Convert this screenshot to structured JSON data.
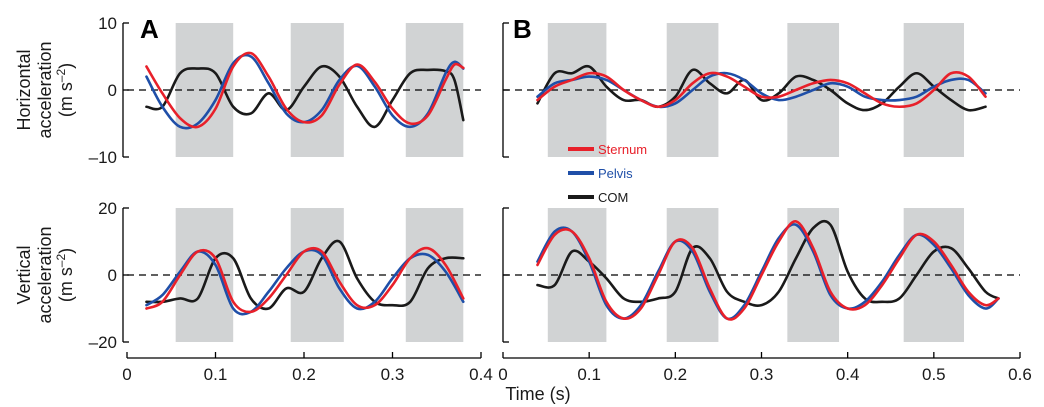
{
  "figure": {
    "xlabel": "Time (s)",
    "panel_letters": [
      "A",
      "B"
    ],
    "row_titles": [
      {
        "line1": "Horizontal",
        "line2": "acceleration",
        "unit": "(m s",
        "sup": "–2",
        "close": ")"
      },
      {
        "line1": "Vertical",
        "line2": "acceleration",
        "unit": "(m s",
        "sup": "–2",
        "close": ")"
      }
    ],
    "legend": [
      {
        "name": "Sternum",
        "color": "#e8202a"
      },
      {
        "name": "Pelvis",
        "color": "#1f4fa8"
      },
      {
        "name": "COM",
        "color": "#1a1a1a"
      }
    ],
    "colors": {
      "shade": "#d1d3d4",
      "axis": "#000000"
    }
  },
  "chart_data": [
    {
      "type": "line",
      "panel": "A",
      "row": "horizontal",
      "xlim": [
        0,
        0.4
      ],
      "ylim": [
        -10,
        10
      ],
      "xticks": [
        0,
        0.1,
        0.2,
        0.3,
        0.4
      ],
      "xtick_labels": [
        "0",
        "0.1",
        "0.2",
        "0.3",
        "0.4"
      ],
      "yticks": [
        -10,
        0,
        10
      ],
      "ytick_labels": [
        "–10",
        "0",
        "10"
      ],
      "shaded": [
        [
          0.055,
          0.12
        ],
        [
          0.185,
          0.245
        ],
        [
          0.315,
          0.38
        ]
      ],
      "series": [
        {
          "name": "Sternum",
          "x": [
            0.022,
            0.04,
            0.06,
            0.08,
            0.1,
            0.12,
            0.14,
            0.16,
            0.18,
            0.2,
            0.22,
            0.24,
            0.26,
            0.28,
            0.3,
            0.32,
            0.34,
            0.36,
            0.37,
            0.38
          ],
          "y": [
            3.5,
            -0.5,
            -4.2,
            -5.5,
            -2.8,
            3.5,
            5.5,
            2.0,
            -2.8,
            -4.8,
            -3.8,
            0.8,
            3.8,
            1.2,
            -2.8,
            -5.0,
            -3.8,
            1.5,
            3.8,
            3.3
          ]
        },
        {
          "name": "Pelvis",
          "x": [
            0.022,
            0.04,
            0.06,
            0.08,
            0.1,
            0.12,
            0.14,
            0.16,
            0.18,
            0.2,
            0.22,
            0.24,
            0.26,
            0.28,
            0.3,
            0.32,
            0.34,
            0.36,
            0.37,
            0.38
          ],
          "y": [
            2.0,
            -2.5,
            -5.5,
            -5.0,
            -1.5,
            4.0,
            5.0,
            1.0,
            -3.5,
            -4.8,
            -3.0,
            1.5,
            3.6,
            0.5,
            -3.8,
            -5.5,
            -3.5,
            2.5,
            4.2,
            3.2
          ]
        },
        {
          "name": "COM",
          "x": [
            0.022,
            0.04,
            0.06,
            0.08,
            0.1,
            0.12,
            0.14,
            0.16,
            0.18,
            0.2,
            0.22,
            0.24,
            0.26,
            0.28,
            0.3,
            0.32,
            0.34,
            0.36,
            0.37,
            0.38
          ],
          "y": [
            -2.5,
            -2.5,
            2.5,
            3.2,
            2.5,
            -2.5,
            -3.5,
            -0.5,
            -3.0,
            0.5,
            3.5,
            2.0,
            -2.5,
            -5.5,
            -1.5,
            2.5,
            3.0,
            2.8,
            1.5,
            -4.5
          ]
        }
      ]
    },
    {
      "type": "line",
      "panel": "B",
      "row": "horizontal",
      "xlim": [
        0,
        0.6
      ],
      "ylim": [
        -10,
        10
      ],
      "xticks": [
        0,
        0.1,
        0.2,
        0.3,
        0.4,
        0.5,
        0.6
      ],
      "xtick_labels": [
        "0",
        "0.1",
        "0.2",
        "0.3",
        "0.4",
        "0.5",
        "0.6"
      ],
      "yticks": [
        -10,
        0,
        10
      ],
      "ytick_labels": [
        "",
        "",
        ""
      ],
      "shaded": [
        [
          0.052,
          0.12
        ],
        [
          0.19,
          0.25
        ],
        [
          0.33,
          0.39
        ],
        [
          0.465,
          0.535
        ]
      ],
      "series": [
        {
          "name": "Sternum",
          "x": [
            0.04,
            0.06,
            0.08,
            0.1,
            0.12,
            0.14,
            0.16,
            0.18,
            0.2,
            0.22,
            0.24,
            0.26,
            0.28,
            0.3,
            0.32,
            0.34,
            0.36,
            0.38,
            0.4,
            0.42,
            0.44,
            0.46,
            0.48,
            0.5,
            0.52,
            0.54,
            0.56
          ],
          "y": [
            -1.5,
            0.5,
            1.5,
            2.5,
            2.0,
            0.0,
            -1.5,
            -2.5,
            -1.5,
            1.0,
            2.5,
            2.0,
            0.5,
            -1.0,
            -1.0,
            0.0,
            1.0,
            1.5,
            1.0,
            -0.5,
            -2.0,
            -2.5,
            -2.0,
            0.0,
            2.5,
            2.0,
            -1.0
          ]
        },
        {
          "name": "Pelvis",
          "x": [
            0.04,
            0.06,
            0.08,
            0.1,
            0.12,
            0.14,
            0.16,
            0.18,
            0.2,
            0.22,
            0.24,
            0.26,
            0.28,
            0.3,
            0.32,
            0.34,
            0.36,
            0.38,
            0.4,
            0.42,
            0.44,
            0.46,
            0.48,
            0.5,
            0.52,
            0.54,
            0.56
          ],
          "y": [
            -1.0,
            1.0,
            1.5,
            2.0,
            1.5,
            0.0,
            -1.5,
            -2.5,
            -2.0,
            0.0,
            2.0,
            2.5,
            1.5,
            -0.5,
            -1.5,
            -1.0,
            0.0,
            1.0,
            0.5,
            -1.0,
            -1.5,
            -1.5,
            -1.0,
            0.5,
            1.5,
            1.5,
            -0.5
          ]
        },
        {
          "name": "COM",
          "x": [
            0.04,
            0.06,
            0.08,
            0.1,
            0.12,
            0.14,
            0.16,
            0.18,
            0.2,
            0.22,
            0.24,
            0.26,
            0.28,
            0.3,
            0.32,
            0.34,
            0.36,
            0.38,
            0.4,
            0.42,
            0.44,
            0.46,
            0.48,
            0.5,
            0.52,
            0.54,
            0.56
          ],
          "y": [
            -2.0,
            2.5,
            2.5,
            3.5,
            0.5,
            -1.5,
            -1.5,
            -2.5,
            -1.0,
            3.0,
            1.0,
            -0.5,
            1.5,
            -1.5,
            -0.5,
            2.0,
            1.5,
            0.0,
            -2.0,
            -3.0,
            -2.0,
            0.5,
            2.5,
            0.5,
            -1.5,
            -3.0,
            -2.5
          ]
        }
      ]
    },
    {
      "type": "line",
      "panel": "A",
      "row": "vertical",
      "xlim": [
        0,
        0.4
      ],
      "ylim": [
        -20,
        20
      ],
      "xticks": [
        0,
        0.1,
        0.2,
        0.3,
        0.4
      ],
      "xtick_labels": [
        "0",
        "0.1",
        "0.2",
        "0.3",
        "0.4"
      ],
      "yticks": [
        -20,
        0,
        20
      ],
      "ytick_labels": [
        "–20",
        "0",
        "20"
      ],
      "shaded": [
        [
          0.055,
          0.12
        ],
        [
          0.185,
          0.245
        ],
        [
          0.315,
          0.38
        ]
      ],
      "series": [
        {
          "name": "Sternum",
          "x": [
            0.022,
            0.04,
            0.06,
            0.08,
            0.1,
            0.12,
            0.14,
            0.16,
            0.18,
            0.2,
            0.22,
            0.24,
            0.26,
            0.28,
            0.3,
            0.32,
            0.34,
            0.36,
            0.38
          ],
          "y": [
            -10,
            -8,
            0,
            7,
            5,
            -8,
            -11,
            -7,
            0,
            7,
            7,
            -2,
            -9,
            -9,
            -3,
            5,
            8,
            3,
            -7
          ]
        },
        {
          "name": "Pelvis",
          "x": [
            0.022,
            0.04,
            0.06,
            0.08,
            0.1,
            0.12,
            0.14,
            0.16,
            0.18,
            0.2,
            0.22,
            0.24,
            0.26,
            0.28,
            0.3,
            0.32,
            0.34,
            0.36,
            0.38
          ],
          "y": [
            -9,
            -6,
            1,
            7,
            3,
            -10,
            -11,
            -5,
            2,
            7,
            6,
            -4,
            -10,
            -8,
            -1,
            5,
            6,
            1,
            -8
          ]
        },
        {
          "name": "COM",
          "x": [
            0.022,
            0.04,
            0.06,
            0.08,
            0.1,
            0.12,
            0.14,
            0.16,
            0.18,
            0.2,
            0.22,
            0.24,
            0.26,
            0.28,
            0.3,
            0.32,
            0.34,
            0.36,
            0.38
          ],
          "y": [
            -8,
            -8,
            -7,
            -7,
            5,
            5,
            -7,
            -10,
            -4,
            -5,
            5,
            10,
            -1,
            -8,
            -9,
            -8,
            2,
            5,
            5
          ]
        }
      ]
    },
    {
      "type": "line",
      "panel": "B",
      "row": "vertical",
      "xlim": [
        0,
        0.6
      ],
      "ylim": [
        -20,
        20
      ],
      "xticks": [
        0,
        0.1,
        0.2,
        0.3,
        0.4,
        0.5,
        0.6
      ],
      "xtick_labels": [
        "0",
        "0.1",
        "0.2",
        "0.3",
        "0.4",
        "0.5",
        "0.6"
      ],
      "yticks": [
        -20,
        0,
        20
      ],
      "ytick_labels": [
        "",
        "",
        ""
      ],
      "shaded": [
        [
          0.052,
          0.12
        ],
        [
          0.19,
          0.25
        ],
        [
          0.33,
          0.39
        ],
        [
          0.465,
          0.535
        ]
      ],
      "series": [
        {
          "name": "Sternum",
          "x": [
            0.04,
            0.06,
            0.08,
            0.1,
            0.12,
            0.14,
            0.16,
            0.18,
            0.2,
            0.22,
            0.24,
            0.26,
            0.28,
            0.3,
            0.32,
            0.34,
            0.36,
            0.38,
            0.4,
            0.42,
            0.44,
            0.46,
            0.48,
            0.5,
            0.52,
            0.54,
            0.56,
            0.575
          ],
          "y": [
            3,
            12,
            13,
            5,
            -8,
            -13,
            -10,
            0,
            10,
            8,
            -4,
            -13,
            -10,
            0,
            10,
            16,
            8,
            -5,
            -10,
            -9,
            -3,
            5,
            12,
            10,
            3,
            -5,
            -9,
            -7
          ]
        },
        {
          "name": "Pelvis",
          "x": [
            0.04,
            0.06,
            0.08,
            0.1,
            0.12,
            0.14,
            0.16,
            0.18,
            0.2,
            0.22,
            0.24,
            0.26,
            0.28,
            0.3,
            0.32,
            0.34,
            0.36,
            0.38,
            0.4,
            0.42,
            0.44,
            0.46,
            0.48,
            0.5,
            0.52,
            0.54,
            0.56,
            0.575
          ],
          "y": [
            4,
            13,
            13,
            4,
            -9,
            -13,
            -9,
            1,
            10,
            7,
            -5,
            -13,
            -9,
            1,
            11,
            15,
            7,
            -6,
            -10,
            -8,
            -2,
            6,
            12,
            9,
            2,
            -6,
            -10,
            -7
          ]
        },
        {
          "name": "COM",
          "x": [
            0.04,
            0.06,
            0.08,
            0.1,
            0.12,
            0.14,
            0.16,
            0.18,
            0.2,
            0.22,
            0.24,
            0.26,
            0.28,
            0.3,
            0.32,
            0.34,
            0.36,
            0.38,
            0.4,
            0.42,
            0.44,
            0.46,
            0.48,
            0.5,
            0.52,
            0.54,
            0.56,
            0.575
          ],
          "y": [
            -3,
            -3,
            7,
            4,
            -1,
            -7,
            -8,
            -7,
            -5,
            8,
            5,
            -5,
            -8,
            -9,
            -5,
            5,
            14,
            15,
            1,
            -7,
            -8,
            -7,
            0,
            7,
            8,
            2,
            -5,
            -7
          ]
        }
      ]
    }
  ]
}
